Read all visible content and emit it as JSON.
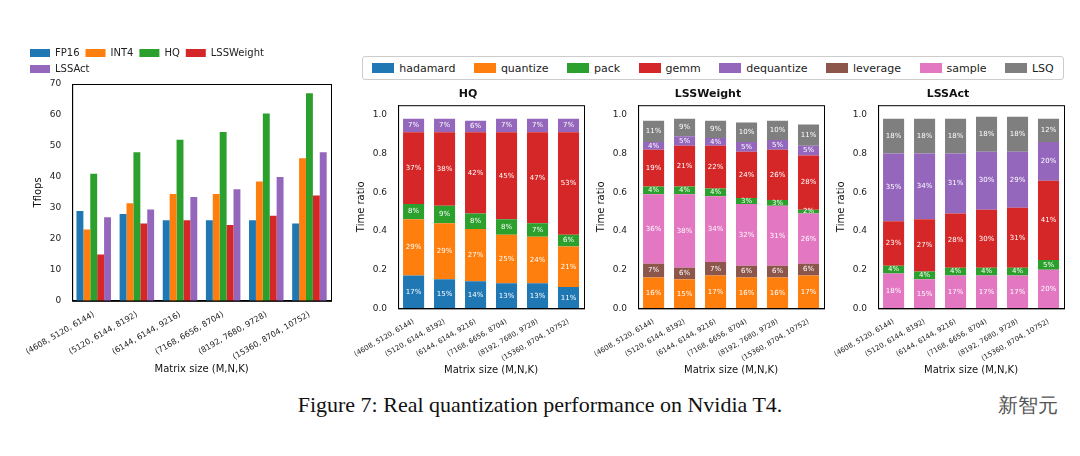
{
  "chart_data": [
    {
      "type": "bar",
      "x_label": "Matrix size (M,N,K)",
      "y_label": "Tflops",
      "categories": [
        "(4608, 5120, 6144)",
        "(5120, 6144, 8192)",
        "(6144, 6144, 9216)",
        "(7168, 6656, 8704)",
        "(8192, 7680, 9728)",
        "(15360, 8704, 10752)"
      ],
      "series": [
        {
          "name": "FP16",
          "color": "#1f77b4",
          "values": [
            29,
            28,
            26,
            26,
            26,
            25
          ]
        },
        {
          "name": "INT4",
          "color": "#ff7f0e",
          "values": [
            23,
            31.5,
            34.5,
            34.5,
            38.5,
            46
          ]
        },
        {
          "name": "HQ",
          "color": "#2ca02c",
          "values": [
            41,
            48,
            52,
            54.5,
            60.5,
            67
          ]
        },
        {
          "name": "LSSWeight",
          "color": "#d62728",
          "values": [
            15,
            25,
            26,
            24.5,
            27.5,
            34
          ]
        },
        {
          "name": "LSSAct",
          "color": "#9467bd",
          "values": [
            27,
            29.5,
            33.5,
            36,
            40,
            48
          ]
        }
      ],
      "ylim": [
        0,
        70
      ],
      "yticks": [
        0,
        10,
        20,
        30,
        40,
        50,
        60,
        70
      ],
      "grid": false,
      "legend": "top"
    },
    {
      "type": "bar",
      "title": "HQ",
      "x_label": "Matrix size (M,N,K)",
      "y_label": "Time ratio",
      "categories": [
        "(4608, 5120, 6144)",
        "(5120, 6144, 8192)",
        "(6144, 6144, 9216)",
        "(7168, 6656, 8704)",
        "(8192, 7680, 9728)",
        "(15360, 8704, 10752)"
      ],
      "series": [
        {
          "name": "hadamard",
          "color": "#1f77b4",
          "values": [
            0.17,
            0.15,
            0.14,
            0.13,
            0.13,
            0.11
          ],
          "value_labels": [
            "17%",
            "15%",
            "14%",
            "13%",
            "13%",
            "11%"
          ]
        },
        {
          "name": "quantize",
          "color": "#ff7f0e",
          "values": [
            0.29,
            0.29,
            0.27,
            0.25,
            0.24,
            0.21
          ],
          "value_labels": [
            "29%",
            "29%",
            "27%",
            "25%",
            "24%",
            "21%"
          ]
        },
        {
          "name": "pack",
          "color": "#2ca02c",
          "values": [
            0.08,
            0.09,
            0.08,
            0.08,
            0.07,
            0.06
          ],
          "value_labels": [
            "8%",
            "9%",
            "8%",
            "8%",
            "7%",
            "6%"
          ]
        },
        {
          "name": "gemm",
          "color": "#d62728",
          "values": [
            0.37,
            0.38,
            0.42,
            0.45,
            0.47,
            0.53
          ],
          "value_labels": [
            "37%",
            "38%",
            "42%",
            "45%",
            "47%",
            "53%"
          ]
        },
        {
          "name": "dequantize",
          "color": "#9467bd",
          "values": [
            0.07,
            0.07,
            0.06,
            0.07,
            0.07,
            0.07
          ],
          "value_labels": [
            "7%",
            "7%",
            "6%",
            "7%",
            "7%",
            "7%"
          ]
        }
      ],
      "stacked": true,
      "data_labels": true,
      "ylim": [
        0,
        1.05
      ],
      "yticks": [
        {
          "value": 0,
          "label": "0.0"
        },
        0.2,
        0.4,
        0.6,
        0.8,
        {
          "value": 1,
          "label": "1.0"
        }
      ],
      "grid": false,
      "legend": "top"
    },
    {
      "type": "bar",
      "title": "LSSWeight",
      "x_label": "Matrix size (M,N,K)",
      "y_label": "Time ratio",
      "categories": [
        "(4608, 5120, 6144)",
        "(5120, 6144, 8192)",
        "(6144, 6144, 9216)",
        "(7168, 6656, 8704)",
        "(8192, 7680, 9728)",
        "(15360, 8704, 10752)"
      ],
      "series": [
        {
          "name": "quantize",
          "color": "#ff7f0e",
          "values": [
            0.16,
            0.15,
            0.17,
            0.16,
            0.16,
            0.17
          ],
          "value_labels": [
            "16%",
            "15%",
            "17%",
            "16%",
            "16%",
            "17%"
          ]
        },
        {
          "name": "leverage",
          "color": "#8c564b",
          "values": [
            0.07,
            0.06,
            0.07,
            0.06,
            0.06,
            0.06
          ],
          "value_labels": [
            "7%",
            "6%",
            "7%",
            "6%",
            "6%",
            "6%"
          ]
        },
        {
          "name": "sample",
          "color": "#e377c2",
          "values": [
            0.36,
            0.38,
            0.34,
            0.32,
            0.31,
            0.26
          ],
          "value_labels": [
            "36%",
            "38%",
            "34%",
            "32%",
            "31%",
            "26%"
          ]
        },
        {
          "name": "pack",
          "color": "#2ca02c",
          "values": [
            0.04,
            0.04,
            0.04,
            0.03,
            0.03,
            0.02
          ],
          "value_labels": [
            "4%",
            "4%",
            "4%",
            "3%",
            "3%",
            "2%"
          ]
        },
        {
          "name": "gemm",
          "color": "#d62728",
          "values": [
            0.19,
            0.21,
            0.22,
            0.24,
            0.26,
            0.28
          ],
          "value_labels": [
            "19%",
            "21%",
            "22%",
            "24%",
            "26%",
            "28%"
          ]
        },
        {
          "name": "dequantize",
          "color": "#9467bd",
          "values": [
            0.04,
            0.05,
            0.04,
            0.05,
            0.05,
            0.05
          ],
          "value_labels": [
            "4%",
            "5%",
            "4%",
            "5%",
            "5%",
            "5%"
          ]
        },
        {
          "name": "LSQ",
          "color": "#7f7f7f",
          "values": [
            0.11,
            0.09,
            0.09,
            0.1,
            0.1,
            0.11
          ],
          "value_labels": [
            "11%",
            "9%",
            "9%",
            "10%",
            "10%",
            "11%"
          ]
        }
      ],
      "stacked": true,
      "data_labels": true,
      "ylim": [
        0,
        1.05
      ],
      "yticks": [
        {
          "value": 0,
          "label": "0.0"
        },
        0.2,
        0.4,
        0.6,
        0.8,
        {
          "value": 1,
          "label": "1.0"
        }
      ],
      "grid": false,
      "legend": "top"
    },
    {
      "type": "bar",
      "title": "LSSAct",
      "x_label": "Matrix size (M,N,K)",
      "y_label": "Time ratio",
      "categories": [
        "(4608, 5120, 6144)",
        "(5120, 6144, 8192)",
        "(6144, 6144, 9216)",
        "(7168, 6656, 8704)",
        "(8192, 7680, 9728)",
        "(15360, 8704, 10752)"
      ],
      "series": [
        {
          "name": "sample",
          "color": "#e377c2",
          "values": [
            0.18,
            0.15,
            0.17,
            0.17,
            0.17,
            0.2
          ],
          "value_labels": [
            "18%",
            "15%",
            "17%",
            "17%",
            "17%",
            "20%"
          ]
        },
        {
          "name": "pack",
          "color": "#2ca02c",
          "values": [
            0.04,
            0.04,
            0.04,
            0.04,
            0.04,
            0.05
          ],
          "value_labels": [
            "4%",
            "4%",
            "4%",
            "4%",
            "4%",
            "5%"
          ]
        },
        {
          "name": "gemm",
          "color": "#d62728",
          "values": [
            0.23,
            0.27,
            0.28,
            0.3,
            0.31,
            0.41
          ],
          "value_labels": [
            "23%",
            "27%",
            "28%",
            "30%",
            "31%",
            "41%"
          ]
        },
        {
          "name": "dequantize",
          "color": "#9467bd",
          "values": [
            0.35,
            0.34,
            0.31,
            0.3,
            0.29,
            0.2
          ],
          "value_labels": [
            "35%",
            "34%",
            "31%",
            "30%",
            "29%",
            "20%"
          ]
        },
        {
          "name": "LSQ",
          "color": "#7f7f7f",
          "values": [
            0.18,
            0.18,
            0.18,
            0.18,
            0.18,
            0.12
          ],
          "value_labels": [
            "18%",
            "18%",
            "18%",
            "18%",
            "18%",
            "12%"
          ]
        }
      ],
      "stacked": true,
      "data_labels": true,
      "ylim": [
        0,
        1.05
      ],
      "yticks": [
        {
          "value": 0,
          "label": "0.0"
        },
        0.2,
        0.4,
        0.6,
        0.8,
        {
          "value": 1,
          "label": "1.0"
        }
      ],
      "grid": false,
      "legend": "top"
    }
  ],
  "caption": "Figure 7: Real quantization performance on Nvidia T4.",
  "watermark": "新智元"
}
